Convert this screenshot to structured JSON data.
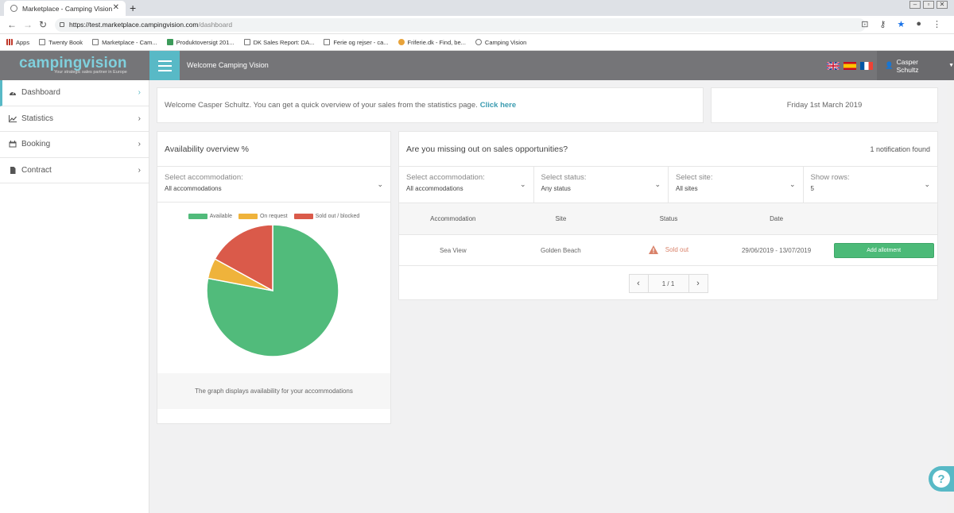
{
  "browser": {
    "tab_title": "Marketplace - Camping Vision",
    "url_host": "https://test.marketplace.campingvision.com",
    "url_path": "/dashboard",
    "bookmarks": [
      "Apps",
      "Twenty Book",
      "Marketplace - Cam...",
      "Produktoversigt 201...",
      "DK Sales Report: DA...",
      "Ferie og rejser - ca...",
      "Friferie.dk - Find, be...",
      "Camping Vision"
    ]
  },
  "header": {
    "logo_text": "campingvision",
    "logo_tagline": "Your strategic sales partner in Europe",
    "welcome": "Welcome Camping Vision",
    "user_name": "Casper Schultz",
    "languages": [
      "english",
      "spanish",
      "french"
    ]
  },
  "sidebar": {
    "items": [
      {
        "label": "Dashboard",
        "icon": "gauge-icon"
      },
      {
        "label": "Statistics",
        "icon": "chart-line-icon"
      },
      {
        "label": "Booking",
        "icon": "calendar-icon"
      },
      {
        "label": "Contract",
        "icon": "file-icon"
      }
    ]
  },
  "welcome_card": {
    "text": "Welcome Casper Schultz. You can get a quick overview of your sales from the statistics page.",
    "link": "Click here"
  },
  "date_card": {
    "date": "Friday 1st March 2019"
  },
  "availability": {
    "title": "Availability overview %",
    "select_label": "Select accommodation:",
    "select_value": "All accommodations",
    "caption": "The graph displays availability for your accommodations",
    "chart_data": {
      "type": "pie",
      "categories": [
        "Available",
        "On request",
        "Sold out / blocked"
      ],
      "values": [
        78,
        5,
        17
      ],
      "colors": [
        "#51bb7b",
        "#efb33b",
        "#da5a4a"
      ]
    }
  },
  "opportunities": {
    "title": "Are you missing out on sales opportunities?",
    "notification": "1 notification found",
    "filters": [
      {
        "label": "Select accommodation:",
        "value": "All accommodations"
      },
      {
        "label": "Select status:",
        "value": "Any status"
      },
      {
        "label": "Select site:",
        "value": "All sites"
      },
      {
        "label": "Show rows:",
        "value": "5"
      }
    ],
    "columns": [
      "Accommodation",
      "Site",
      "Status",
      "Date"
    ],
    "rows": [
      {
        "accommodation": "Sea View",
        "site": "Golden Beach",
        "status": "Sold out",
        "date": "29/06/2019 - 13/07/2019",
        "action": "Add allotment"
      }
    ],
    "pager": {
      "info": "1 / 1"
    }
  }
}
